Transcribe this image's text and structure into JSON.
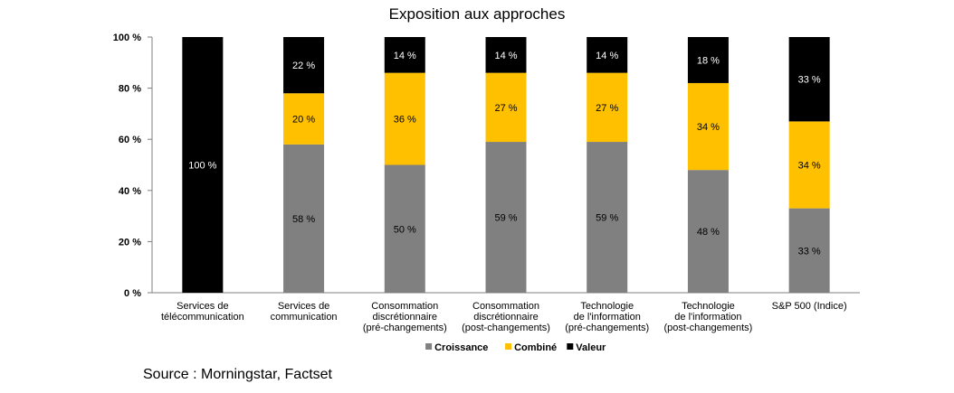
{
  "chart_data": {
    "type": "bar",
    "stacked": true,
    "title": "Exposition aux approches",
    "categories": [
      [
        "Services de",
        "télécommunication"
      ],
      [
        "Services de",
        "communication"
      ],
      [
        "Consommation",
        "discrétionnaire",
        "(pré-changements)"
      ],
      [
        "Consommation",
        "discrétionnaire",
        "(post-changements)"
      ],
      [
        "Technologie",
        "de l'information",
        "(pré-changements)"
      ],
      [
        "Technologie",
        "de l'information",
        "(post-changements)"
      ],
      [
        "S&P 500 (Indice)"
      ]
    ],
    "series": [
      {
        "name": "Croissance",
        "color": "#808080",
        "label_color": "#000000",
        "values": [
          0,
          58,
          50,
          59,
          59,
          48,
          33
        ],
        "labels": [
          "",
          "58 %",
          "50 %",
          "59 %",
          "59 %",
          "48 %",
          "33 %"
        ]
      },
      {
        "name": "Combiné",
        "color": "#FFC000",
        "label_color": "#000000",
        "values": [
          0,
          20,
          36,
          27,
          27,
          34,
          34
        ],
        "labels": [
          "",
          "20 %",
          "36 %",
          "27 %",
          "27 %",
          "34 %",
          "34 %"
        ]
      },
      {
        "name": "Valeur",
        "color": "#000000",
        "label_color": "#ffffff",
        "values": [
          100,
          22,
          14,
          14,
          14,
          18,
          33
        ],
        "labels": [
          "100 %",
          "22 %",
          "14 %",
          "14 %",
          "14 %",
          "18 %",
          "33 %"
        ]
      }
    ],
    "y_ticks": [
      0,
      20,
      40,
      60,
      80,
      100
    ],
    "y_tick_labels": [
      "0 %",
      "20 %",
      "40 %",
      "60 %",
      "80 %",
      "100 %"
    ],
    "ylim": [
      0,
      100
    ],
    "grid": false,
    "legend_position": "bottom"
  },
  "source": "Source : Morningstar, Factset"
}
